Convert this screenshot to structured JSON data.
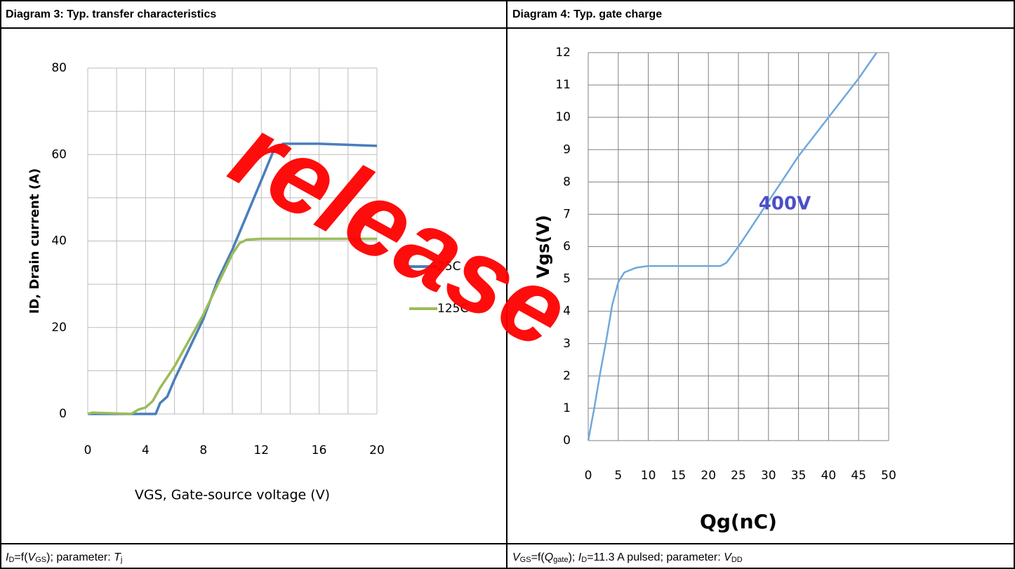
{
  "table": {
    "headers": [
      "Diagram 3: Typ. transfer characteristics",
      "Diagram 4: Typ. gate charge"
    ],
    "captions": [
      [
        {
          "text": "I",
          "style": "italic"
        },
        {
          "text": "D",
          "style": "sub"
        },
        {
          "text": "=f(",
          "style": "normal"
        },
        {
          "text": "V",
          "style": "italic"
        },
        {
          "text": "GS",
          "style": "sub"
        },
        {
          "text": "); parameter: ",
          "style": "normal"
        },
        {
          "text": "T",
          "style": "italic"
        },
        {
          "text": "j",
          "style": "sub"
        }
      ],
      [
        {
          "text": "V",
          "style": "italic"
        },
        {
          "text": "GS",
          "style": "sub"
        },
        {
          "text": "=f(",
          "style": "normal"
        },
        {
          "text": "Q",
          "style": "italic"
        },
        {
          "text": "gate",
          "style": "sub"
        },
        {
          "text": "); ",
          "style": "normal"
        },
        {
          "text": "I",
          "style": "italic"
        },
        {
          "text": "D",
          "style": "sub"
        },
        {
          "text": "=11.3 A pulsed; parameter: ",
          "style": "normal"
        },
        {
          "text": "V",
          "style": "italic"
        },
        {
          "text": "DD",
          "style": "sub"
        }
      ]
    ]
  },
  "watermark": "release",
  "chart_data": [
    {
      "type": "line",
      "y_label": "ID, Drain current (A)",
      "x_label": "VGS, Gate-source voltage (V)",
      "xlim": [
        0,
        20
      ],
      "xticks": [
        0,
        4,
        8,
        12,
        16,
        20
      ],
      "ylim": [
        0,
        80
      ],
      "yticks": [
        0,
        20,
        40,
        60,
        80
      ],
      "xgrid": [
        0,
        2,
        4,
        6,
        8,
        10,
        12,
        14,
        16,
        18,
        20
      ],
      "ygrid": [
        0,
        10,
        20,
        30,
        40,
        50,
        60,
        70,
        80
      ],
      "legend": "right",
      "series": [
        {
          "name": "25C",
          "color": "#4a7ebb",
          "x": [
            0,
            4,
            4.7,
            5,
            5.5,
            6,
            7,
            8,
            9,
            10,
            11,
            12,
            12.8,
            13.5,
            16,
            20
          ],
          "values": [
            0,
            0,
            0,
            2.5,
            4,
            8,
            15,
            22,
            31,
            38,
            46,
            54,
            60.5,
            62.5,
            62.5,
            62
          ]
        },
        {
          "name": "125C",
          "color": "#9bbb59",
          "x": [
            0,
            0.3,
            3,
            3.5,
            4,
            4.5,
            5,
            6,
            7,
            8,
            9,
            10,
            10.5,
            11,
            12,
            20
          ],
          "values": [
            0,
            0.3,
            0,
            1,
            1.5,
            3,
            6,
            11,
            17,
            23,
            30,
            37,
            39.5,
            40.3,
            40.5,
            40.5
          ]
        }
      ]
    },
    {
      "type": "line",
      "y_label": "Vgs(V)",
      "x_label": "Qg(nC)",
      "annotation": "400V",
      "annotation_color": "#4b50c8",
      "xlim": [
        0,
        50
      ],
      "xticks": [
        0,
        5,
        10,
        15,
        20,
        25,
        30,
        35,
        40,
        45,
        50
      ],
      "ylim": [
        0,
        12
      ],
      "yticks": [
        0,
        1,
        2,
        3,
        4,
        5,
        6,
        7,
        8,
        9,
        10,
        11,
        12
      ],
      "grid": true,
      "series": [
        {
          "color": "#6fa8dc",
          "x": [
            0,
            1,
            2,
            3,
            4,
            5,
            6,
            8,
            10,
            15,
            20,
            22,
            23,
            25,
            30,
            35,
            40,
            45,
            48
          ],
          "values": [
            0,
            1,
            2.1,
            3.1,
            4.2,
            4.9,
            5.2,
            5.35,
            5.4,
            5.4,
            5.4,
            5.4,
            5.5,
            6,
            7.4,
            8.8,
            10,
            11.2,
            12
          ]
        }
      ]
    }
  ]
}
